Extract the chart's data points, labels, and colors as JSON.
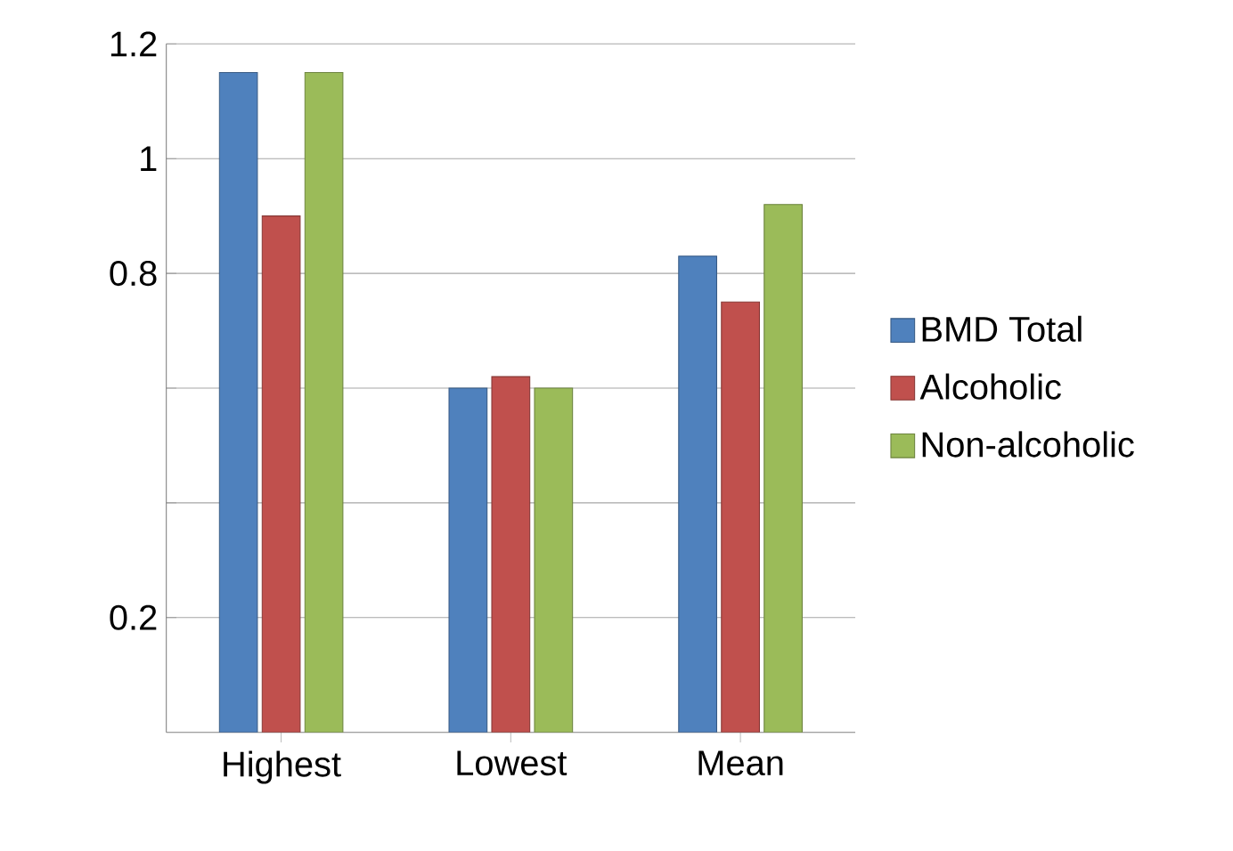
{
  "chart_data": {
    "type": "bar",
    "categories": [
      "Highest",
      "Lowest",
      "Mean"
    ],
    "series": [
      {
        "name": "BMD Total",
        "color": "#4f81bd",
        "values": [
          1.15,
          0.6,
          0.83
        ]
      },
      {
        "name": "Alcoholic",
        "color": "#c0504d",
        "values": [
          0.9,
          0.62,
          0.75
        ]
      },
      {
        "name": "Non-alcoholic",
        "color": "#9bbb59",
        "values": [
          1.15,
          0.6,
          0.92
        ]
      }
    ],
    "ylim": [
      0,
      1.2
    ],
    "yticks": [
      {
        "value": 0.2,
        "label": "0.2"
      },
      {
        "value": 0.4,
        "label": null
      },
      {
        "value": 0.6,
        "label": null
      },
      {
        "value": 0.8,
        "label": "0.8"
      },
      {
        "value": 1.0,
        "label": "1"
      },
      {
        "value": 1.2,
        "label": "1.2"
      }
    ],
    "grid": "y",
    "legend": "right"
  }
}
